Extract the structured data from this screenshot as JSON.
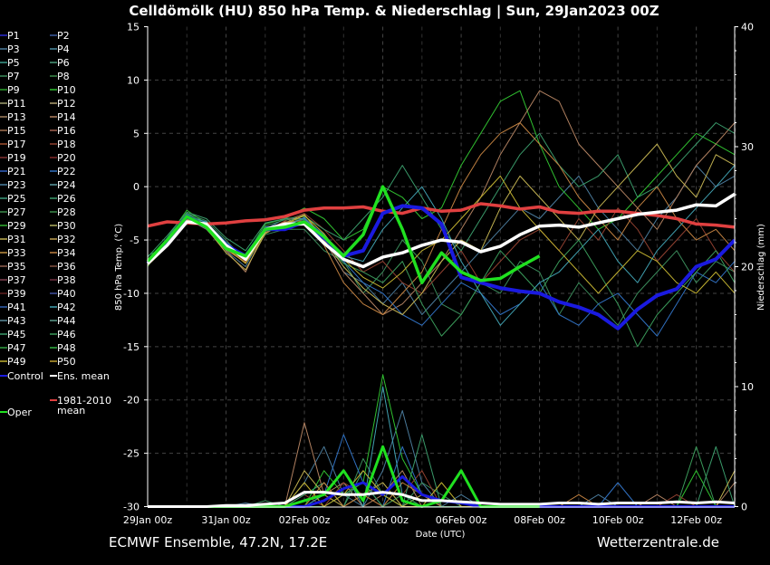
{
  "chart_data": {
    "type": "line",
    "title": "Celldömölk  (HU)  850 hPa Temp. & Niederschlag | Sun, 29Jan2023 00Z",
    "xlabel": "Date (UTC)",
    "ylabel": "850 hPa Temp. (°C)",
    "y2label": "Niederschlag (mm)",
    "ylim": [
      -30,
      15
    ],
    "y2lim": [
      0,
      40
    ],
    "x_step": "12h, starting 29Jan 00z",
    "x_ticks": [
      "29Jan 00z",
      "31Jan 00z",
      "02Feb 00z",
      "04Feb 00z",
      "06Feb 00z",
      "08Feb 00z",
      "10Feb 00z",
      "12Feb 00z"
    ],
    "y_ticks": [
      "15",
      "10",
      "5",
      "0",
      "-5",
      "-10",
      "-15",
      "-20",
      "-25",
      "-30"
    ],
    "y2_ticks": [
      "40",
      "30",
      "20",
      "10",
      "0"
    ],
    "grid": true,
    "legend_position": "left-outside",
    "members": [
      {
        "name": "P3",
        "color": "#4a7a9a",
        "temp": [
          -7,
          -5,
          -3,
          -3.8,
          -6,
          -7.5,
          -4,
          -3,
          -3,
          -5,
          -8,
          -9,
          -11,
          -9,
          -12,
          -10,
          -8,
          -6,
          -4,
          -2,
          -3,
          -1,
          1,
          -2,
          -4,
          -6,
          -3,
          -1,
          2,
          0,
          1
        ],
        "precip": [
          0,
          0,
          0,
          0,
          0,
          0.3,
          0,
          0,
          2,
          5,
          1,
          0,
          3,
          8,
          2,
          0,
          1,
          0,
          0,
          0,
          0,
          0,
          0,
          1,
          0,
          0,
          0,
          0,
          0,
          0,
          0
        ]
      },
      {
        "name": "P7",
        "color": "#3a8a5a",
        "temp": [
          -6.5,
          -5.5,
          -2.5,
          -3.2,
          -5,
          -7,
          -4.5,
          -4,
          -4,
          -6,
          -7,
          -10,
          -8,
          -5,
          -7,
          -11,
          -12,
          -9,
          -10,
          -7,
          -8,
          -12,
          -9,
          -11,
          -13,
          -10,
          -8,
          -6,
          -9,
          -7,
          -8
        ],
        "precip": [
          0,
          0,
          0,
          0,
          0,
          0,
          0.5,
          0,
          1,
          2,
          0,
          4,
          1,
          0,
          2,
          1,
          0,
          0,
          0,
          0,
          0,
          0,
          0,
          0,
          0,
          0,
          0,
          0,
          0,
          0,
          0
        ]
      },
      {
        "name": "P10",
        "color": "#30c030",
        "temp": [
          -7.5,
          -4.8,
          -2.2,
          -3.5,
          -5.5,
          -6.5,
          -3.5,
          -3,
          -2,
          -3,
          -5,
          -4,
          0,
          -1,
          -3,
          -2,
          2,
          5,
          8,
          9,
          4,
          0,
          -2,
          -4,
          -3,
          -1,
          1,
          3,
          5,
          4,
          3
        ],
        "precip": [
          0,
          0,
          0,
          0,
          0,
          0,
          0,
          0,
          0,
          3,
          1,
          2,
          11,
          4,
          1,
          0,
          0,
          0,
          0,
          0,
          0,
          0,
          0,
          0,
          0,
          0,
          0,
          0,
          3,
          0,
          0
        ]
      },
      {
        "name": "P14",
        "color": "#b08060",
        "temp": [
          -7,
          -5,
          -3,
          -4,
          -6,
          -8,
          -4,
          -3.5,
          -3,
          -5,
          -8,
          -10,
          -12,
          -11,
          -9,
          -7,
          -4,
          -1,
          3,
          6,
          9,
          8,
          4,
          2,
          0,
          -2,
          -4,
          -1,
          2,
          4,
          6
        ],
        "precip": [
          0,
          0,
          0,
          0,
          0,
          0,
          0,
          0,
          7,
          1,
          2,
          0,
          1,
          3,
          0,
          0,
          0,
          0,
          0,
          0,
          0,
          0,
          0,
          0,
          0,
          0,
          1,
          0,
          0,
          0,
          2
        ]
      },
      {
        "name": "P18",
        "color": "#904030",
        "temp": [
          -6.8,
          -5.2,
          -2.7,
          -3.6,
          -5.8,
          -7,
          -4.2,
          -3.2,
          -2.5,
          -4,
          -6,
          -8,
          -7,
          -9,
          -10,
          -8,
          -6,
          -9,
          -7,
          -5,
          -4,
          -6,
          -3,
          -5,
          -2,
          -4,
          -7,
          -5,
          -3,
          -6,
          -8
        ],
        "precip": [
          0,
          0,
          0,
          0,
          0,
          0,
          0,
          0,
          1,
          0,
          2,
          1,
          0,
          1,
          3,
          0,
          0,
          0,
          0,
          0,
          0,
          0,
          0,
          0,
          0,
          0,
          0,
          1,
          0,
          0,
          0
        ]
      },
      {
        "name": "P22",
        "color": "#3070c0",
        "temp": [
          -7.2,
          -5.4,
          -2.6,
          -3.4,
          -5.2,
          -6.6,
          -3.8,
          -3.6,
          -3,
          -4.5,
          -7,
          -9,
          -10,
          -12,
          -13,
          -11,
          -9,
          -10,
          -12,
          -11,
          -9,
          -12,
          -13,
          -11,
          -10,
          -12,
          -14,
          -11,
          -8,
          -9,
          -7
        ],
        "precip": [
          0,
          0,
          0,
          0,
          0,
          0,
          0,
          0,
          0,
          1,
          6,
          2,
          0,
          5,
          1,
          0,
          0,
          0,
          0,
          0,
          0,
          0,
          0,
          0,
          2,
          0,
          0,
          0,
          0,
          0,
          0
        ]
      },
      {
        "name": "P26",
        "color": "#3a9a6a",
        "temp": [
          -6.6,
          -4.6,
          -2.4,
          -3,
          -4.8,
          -6,
          -3.4,
          -3,
          -2.8,
          -4,
          -5,
          -3,
          -1,
          2,
          -1,
          -4,
          -6,
          -3,
          0,
          3,
          5,
          2,
          0,
          1,
          3,
          -1,
          0,
          2,
          4,
          6,
          5
        ],
        "precip": [
          0,
          0,
          0,
          0,
          0,
          0,
          0,
          0,
          1,
          2,
          0,
          3,
          1,
          0,
          6,
          0,
          0,
          0,
          0,
          0,
          0,
          0,
          0,
          0,
          0,
          0,
          0,
          0,
          0,
          5,
          0
        ]
      },
      {
        "name": "P31",
        "color": "#c0b050",
        "temp": [
          -7.4,
          -5.6,
          -2.9,
          -3.9,
          -6.2,
          -7.8,
          -4.4,
          -3.4,
          -2.6,
          -5,
          -7.5,
          -9.5,
          -11,
          -12,
          -10,
          -7,
          -5,
          -6,
          -2,
          1,
          -1,
          -3,
          -5,
          -2,
          0,
          2,
          4,
          1,
          -1,
          3,
          2
        ],
        "precip": [
          0,
          0,
          0,
          0,
          0,
          0,
          0,
          0,
          3,
          1,
          0,
          1,
          2,
          0,
          1,
          0,
          0,
          0,
          0,
          0,
          0,
          0,
          0,
          0,
          0,
          0,
          0,
          0,
          0,
          0,
          3
        ]
      },
      {
        "name": "P34",
        "color": "#c08040",
        "temp": [
          -7,
          -5.1,
          -3.1,
          -3.7,
          -5.9,
          -7.1,
          -4.1,
          -3.3,
          -3.2,
          -5.5,
          -9,
          -11,
          -12,
          -10,
          -8,
          -4,
          0,
          3,
          5,
          6,
          4,
          2,
          -1,
          -3,
          -5,
          -2,
          0,
          -3,
          -5,
          -4,
          -6
        ],
        "precip": [
          0,
          0,
          0,
          0,
          0,
          0,
          0,
          0,
          0,
          2,
          0,
          1,
          0,
          2,
          1,
          0,
          0,
          0,
          0,
          0,
          0,
          0,
          1,
          0,
          0,
          0,
          0,
          0,
          0,
          0,
          0
        ]
      },
      {
        "name": "P42",
        "color": "#40a0b0",
        "temp": [
          -6.9,
          -5.3,
          -2.8,
          -3.3,
          -5.4,
          -6.9,
          -3.9,
          -3.7,
          -2.9,
          -4.8,
          -6.5,
          -7,
          -4,
          -2,
          0,
          -3,
          -7,
          -10,
          -13,
          -11,
          -9,
          -8,
          -6,
          -4,
          -7,
          -9,
          -6,
          -4,
          -2,
          0,
          2
        ],
        "precip": [
          0,
          0,
          0,
          0,
          0,
          0,
          0,
          0,
          0,
          1,
          3,
          0,
          10,
          1,
          0,
          0,
          0,
          0,
          0,
          0,
          0,
          0,
          0,
          0,
          0,
          0,
          0,
          0,
          0,
          0,
          0
        ]
      },
      {
        "name": "P46",
        "color": "#3a9a5a",
        "temp": [
          -7.1,
          -4.9,
          -2.5,
          -3.6,
          -5.6,
          -6.8,
          -3.7,
          -3.1,
          -3.1,
          -5.2,
          -7.2,
          -8,
          -9,
          -7,
          -11,
          -14,
          -12,
          -9,
          -6,
          -8,
          -10,
          -7,
          -5,
          -8,
          -11,
          -15,
          -12,
          -10,
          -8,
          -6,
          -9
        ],
        "precip": [
          0,
          0,
          0,
          0,
          0,
          0,
          0,
          0,
          0,
          0,
          1,
          2,
          0,
          1,
          0,
          0,
          0,
          0,
          0,
          0,
          0,
          0,
          0,
          0,
          0,
          0,
          0,
          0,
          5,
          0,
          0
        ]
      },
      {
        "name": "P49",
        "color": "#c0b030",
        "temp": [
          -7.3,
          -5.2,
          -3,
          -3.9,
          -5.7,
          -7.2,
          -4.3,
          -3.5,
          -2.7,
          -4.4,
          -6.8,
          -8.5,
          -9.5,
          -8,
          -6,
          -5,
          -3,
          -1,
          1,
          -2,
          -4,
          -6,
          -8,
          -10,
          -8,
          -6,
          -7,
          -9,
          -10,
          -8,
          -10
        ],
        "precip": [
          0,
          0,
          0,
          0,
          0,
          0,
          0,
          0,
          2,
          0,
          1,
          3,
          1,
          0,
          0,
          2,
          0,
          0,
          0,
          0,
          0,
          0,
          0,
          0,
          0,
          0,
          0,
          0,
          0,
          0,
          0
        ]
      }
    ],
    "climatology": {
      "name": "1981-2010 mean",
      "color": "#e04040",
      "temp": [
        -3.7,
        -3.3,
        -3.4,
        -3.5,
        -3.4,
        -3.2,
        -3.1,
        -2.8,
        -2.2,
        -2.0,
        -2.0,
        -1.9,
        -2.3,
        -2.5,
        -2.0,
        -2.3,
        -2.2,
        -1.6,
        -1.8,
        -2.1,
        -1.9,
        -2.4,
        -2.5,
        -2.3,
        -2.3,
        -2.5,
        -2.7,
        -3.0,
        -3.5,
        -3.6,
        -3.8
      ]
    },
    "ens_mean": {
      "name": "Ens. mean",
      "color": "#ffffff",
      "temp": [
        -7.2,
        -5.5,
        -3.3,
        -3.5,
        -5.5,
        -6.8,
        -4.0,
        -3.5,
        -3.5,
        -5.3,
        -6.8,
        -7.5,
        -6.6,
        -6.2,
        -5.5,
        -5.0,
        -5.2,
        -6.1,
        -5.6,
        -4.5,
        -3.7,
        -3.6,
        -3.8,
        -3.4,
        -3.0,
        -2.6,
        -2.4,
        -2.2,
        -1.7,
        -1.8,
        -0.7
      ],
      "precip": [
        0,
        0,
        0,
        0,
        0.1,
        0.1,
        0.2,
        0.3,
        1.2,
        1.2,
        1.0,
        1.0,
        1.2,
        1.0,
        0.5,
        0.5,
        0.4,
        0.3,
        0.2,
        0.2,
        0.2,
        0.3,
        0.3,
        0.2,
        0.3,
        0.3,
        0.3,
        0.4,
        0.3,
        0.4,
        0.3
      ]
    },
    "control": {
      "name": "Control",
      "color": "#1a1ae0",
      "temp": [
        -7.2,
        -5.0,
        -2.8,
        -3.8,
        -5.5,
        -6.5,
        -4.0,
        -4.0,
        -3.3,
        -4.8,
        -6.5,
        -6.0,
        -2.5,
        -1.8,
        -2.0,
        -3.5,
        -8.5,
        -9.0,
        -9.5,
        -9.8,
        -10.0,
        -10.8,
        -11.3,
        -12.0,
        -13.3,
        -11.5,
        -10.2,
        -9.6,
        -7.5,
        -6.8,
        -5.0
      ],
      "precip": [
        0,
        0,
        0,
        0,
        0,
        0,
        0,
        0,
        0,
        0.5,
        1.5,
        2,
        1,
        2.5,
        1,
        0.5,
        0.3,
        0,
        0,
        0,
        0,
        0,
        0,
        0,
        0,
        0,
        0,
        0,
        0,
        0,
        0
      ]
    },
    "oper": {
      "name": "Oper",
      "color": "#20e020",
      "temp": [
        -7.0,
        -5.0,
        -2.8,
        -3.8,
        -5.8,
        -6.5,
        -4.0,
        -3.8,
        -3.3,
        -4.7,
        -6.5,
        -4.5,
        0.0,
        -4.0,
        -9.0,
        -6.2,
        -8.0,
        -8.8,
        -8.6,
        -7.5,
        -6.5
      ],
      "precip": [
        0,
        0,
        0,
        0,
        0,
        0,
        0,
        0,
        0.5,
        1,
        3,
        0.5,
        5,
        0.5,
        0,
        0.5,
        3,
        0,
        0,
        0,
        0
      ]
    }
  },
  "legend": {
    "members": [
      {
        "label": "P1",
        "color": "#2a2ad0"
      },
      {
        "label": "P2",
        "color": "#3a5aa0"
      },
      {
        "label": "P3",
        "color": "#4a7a9a"
      },
      {
        "label": "P4",
        "color": "#4a8aa0"
      },
      {
        "label": "P5",
        "color": "#3a9a8a"
      },
      {
        "label": "P6",
        "color": "#4a9a7a"
      },
      {
        "label": "P7",
        "color": "#3a8a5a"
      },
      {
        "label": "P8",
        "color": "#3a8a4a"
      },
      {
        "label": "P9",
        "color": "#2aa02a"
      },
      {
        "label": "P10",
        "color": "#30c030"
      },
      {
        "label": "P11",
        "color": "#a0a070"
      },
      {
        "label": "P12",
        "color": "#b0a070"
      },
      {
        "label": "P13",
        "color": "#a08060"
      },
      {
        "label": "P14",
        "color": "#b08060"
      },
      {
        "label": "P15",
        "color": "#a07050"
      },
      {
        "label": "P16",
        "color": "#a06050"
      },
      {
        "label": "P17",
        "color": "#a05030"
      },
      {
        "label": "P18",
        "color": "#904030"
      },
      {
        "label": "P19",
        "color": "#803030"
      },
      {
        "label": "P20",
        "color": "#802828"
      },
      {
        "label": "P21",
        "color": "#3060c0"
      },
      {
        "label": "P22",
        "color": "#3070c0"
      },
      {
        "label": "P23",
        "color": "#4a80a0"
      },
      {
        "label": "P24",
        "color": "#5a9aa0"
      },
      {
        "label": "P25",
        "color": "#3a9a7a"
      },
      {
        "label": "P26",
        "color": "#3a9a6a"
      },
      {
        "label": "P27",
        "color": "#3a8a4a"
      },
      {
        "label": "P28",
        "color": "#3a8a4a"
      },
      {
        "label": "P29",
        "color": "#30b030"
      },
      {
        "label": "P30",
        "color": "#b0b060"
      },
      {
        "label": "P31",
        "color": "#c0b050"
      },
      {
        "label": "P32",
        "color": "#c0a050"
      },
      {
        "label": "P33",
        "color": "#c09040"
      },
      {
        "label": "P34",
        "color": "#c08040"
      },
      {
        "label": "P35",
        "color": "#906050"
      },
      {
        "label": "P36",
        "color": "#805040"
      },
      {
        "label": "P37",
        "color": "#804050"
      },
      {
        "label": "P38",
        "color": "#703040"
      },
      {
        "label": "P39",
        "color": "#602020"
      },
      {
        "label": "P40",
        "color": "#4050a0"
      },
      {
        "label": "P41",
        "color": "#3060b0"
      },
      {
        "label": "P42",
        "color": "#40a0b0"
      },
      {
        "label": "P43",
        "color": "#5a8a9a"
      },
      {
        "label": "P44",
        "color": "#5a9a8a"
      },
      {
        "label": "P45",
        "color": "#3a9a6a"
      },
      {
        "label": "P46",
        "color": "#3a9a5a"
      },
      {
        "label": "P47",
        "color": "#30a040"
      },
      {
        "label": "P48",
        "color": "#30b040"
      },
      {
        "label": "P49",
        "color": "#c0b030"
      },
      {
        "label": "P50",
        "color": "#c0a030"
      }
    ],
    "control": "Control",
    "ens_mean": "Ens. mean",
    "clim_line1": "1981-2010",
    "clim_line2": "mean",
    "oper": "Oper"
  },
  "footer": {
    "source": "ECMWF Ensemble, 47.2N, 17.2E",
    "site": "Wetterzentrale.de"
  }
}
